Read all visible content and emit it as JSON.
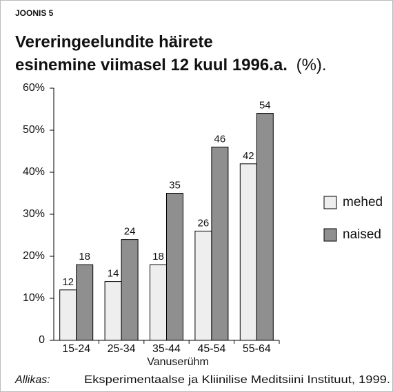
{
  "chart_data": {
    "type": "bar",
    "label": "JOONIS 5",
    "title": [
      "Vereringeelundite häirete",
      "esinemine viimasel 12 kuul 1996.a."
    ],
    "unit": "(%).",
    "x_label": "Vanuserühm",
    "categories": [
      "15-24",
      "25-34",
      "35-44",
      "45-54",
      "55-64"
    ],
    "series": [
      {
        "name": "mehed",
        "color": "#eeeeee",
        "values": [
          12,
          14,
          18,
          26,
          42
        ]
      },
      {
        "name": "naised",
        "color": "#8f8f8f",
        "values": [
          18,
          24,
          35,
          46,
          54
        ]
      }
    ],
    "ylim": [
      0,
      60
    ],
    "yticks": [
      0,
      {
        "value": 10,
        "label": "10%"
      },
      {
        "value": 20,
        "label": "20%"
      },
      {
        "value": 30,
        "label": "30%"
      },
      {
        "value": 40,
        "label": "40%"
      },
      {
        "value": 50,
        "label": "50%"
      },
      {
        "value": 60,
        "label": "60%"
      }
    ],
    "legend": "right",
    "source_label": "Allikas:",
    "source": "Eksperimentaalse ja Kliinilise Meditsiini Instituut, 1999."
  }
}
